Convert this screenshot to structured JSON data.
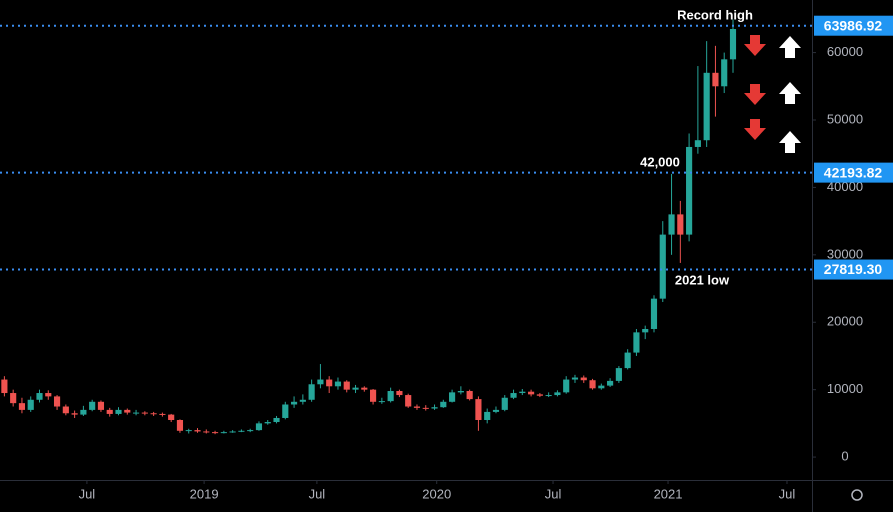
{
  "chart_data": {
    "type": "candlestick",
    "colors": {
      "up": "#26a69a",
      "down": "#ef5350",
      "level": "#3a8df0",
      "level_label": "#2196f3"
    },
    "x": [
      1,
      3,
      5,
      7,
      9,
      11,
      13,
      15,
      17,
      19,
      21,
      23,
      25,
      27,
      29,
      31,
      33,
      35,
      37,
      39,
      41,
      43,
      45,
      47,
      49,
      51,
      53,
      55,
      57,
      59,
      61,
      63,
      65,
      67,
      69,
      71,
      73,
      75,
      77,
      79,
      81,
      83,
      85,
      87,
      89,
      91,
      93,
      95,
      97,
      99,
      101,
      103,
      105,
      107,
      109,
      111,
      113,
      115,
      117,
      119,
      121,
      123,
      125,
      127,
      129,
      131,
      133,
      135,
      137,
      139,
      141,
      143,
      145,
      147,
      149,
      151,
      153,
      155,
      157,
      159,
      161,
      163,
      165,
      167
    ],
    "open": [
      11500,
      9500,
      8000,
      7000,
      8500,
      9500,
      9000,
      7500,
      6500,
      6300,
      7000,
      8200,
      7000,
      6400,
      7000,
      6600,
      6600,
      6500,
      6400,
      6300,
      5500,
      3900,
      4000,
      3800,
      3700,
      3600,
      3700,
      3800,
      3900,
      4000,
      5000,
      5200,
      5800,
      7800,
      8200,
      8500,
      10800,
      11500,
      10500,
      11200,
      10000,
      10300,
      10000,
      8200,
      8300,
      9800,
      9200,
      7500,
      7300,
      7200,
      7400,
      8200,
      9600,
      9800,
      8600,
      5500,
      6700,
      7000,
      8800,
      9500,
      9700,
      9300,
      9100,
      9200,
      9600,
      11500,
      11800,
      11400,
      10200,
      10600,
      11300,
      13200,
      15500,
      18500,
      19000,
      23500,
      33000,
      36000,
      33000,
      46000,
      47000,
      57000,
      55000,
      59000
    ],
    "high": [
      12000,
      10000,
      8800,
      9000,
      10000,
      9900,
      9200,
      7800,
      6900,
      7600,
      8500,
      8400,
      7300,
      7400,
      7200,
      7000,
      6800,
      6700,
      6600,
      6400,
      5600,
      4200,
      4300,
      4100,
      3900,
      3900,
      4000,
      4100,
      4200,
      5300,
      5500,
      6100,
      8200,
      9000,
      9300,
      11500,
      13800,
      12000,
      11800,
      11400,
      10700,
      10500,
      10100,
      8800,
      10300,
      10000,
      9400,
      7800,
      7700,
      7800,
      8500,
      10000,
      10500,
      10000,
      9000,
      7200,
      7500,
      9200,
      10000,
      10100,
      10000,
      9500,
      9600,
      9900,
      12000,
      12200,
      12100,
      11600,
      10900,
      11700,
      13500,
      16000,
      19000,
      19500,
      24000,
      35000,
      42000,
      38000,
      48000,
      58000,
      61700,
      61000,
      60000,
      64900
    ],
    "low": [
      9000,
      7500,
      6500,
      6700,
      8100,
      8500,
      7000,
      6200,
      5800,
      6100,
      6800,
      6700,
      6000,
      6200,
      6300,
      6200,
      6200,
      6100,
      6000,
      5200,
      3600,
      3500,
      3600,
      3500,
      3400,
      3500,
      3600,
      3700,
      3700,
      3900,
      4800,
      5000,
      5600,
      7300,
      7800,
      8200,
      10200,
      9500,
      10000,
      9600,
      9500,
      9700,
      7800,
      7900,
      8100,
      8900,
      7300,
      7000,
      6900,
      7000,
      7300,
      8100,
      9300,
      8400,
      3900,
      5000,
      6500,
      6800,
      8600,
      9200,
      9000,
      8900,
      8900,
      9000,
      9400,
      11000,
      11000,
      10000,
      10000,
      10400,
      11000,
      13000,
      15000,
      17500,
      18500,
      23000,
      30000,
      28800,
      32000,
      45000,
      46000,
      50500,
      54000,
      57000
    ],
    "close": [
      9500,
      8000,
      7000,
      8500,
      9500,
      9000,
      7500,
      6500,
      6300,
      7000,
      8200,
      7000,
      6400,
      7000,
      6600,
      6600,
      6500,
      6400,
      6300,
      5500,
      3900,
      4000,
      3800,
      3700,
      3600,
      3700,
      3800,
      3900,
      4000,
      5000,
      5200,
      5800,
      7800,
      8200,
      8500,
      10800,
      11500,
      10500,
      11200,
      10000,
      10300,
      10000,
      8200,
      8300,
      9800,
      9200,
      7500,
      7300,
      7200,
      7400,
      8200,
      9600,
      9800,
      8600,
      5500,
      6700,
      7000,
      8800,
      9500,
      9700,
      9300,
      9100,
      9200,
      9600,
      11500,
      11800,
      11400,
      10200,
      10600,
      11300,
      13200,
      15500,
      18500,
      19000,
      23500,
      33000,
      36000,
      33000,
      46000,
      47000,
      57000,
      55000,
      59000,
      63500
    ],
    "xlim": [
      0,
      185
    ],
    "xticks": [
      {
        "value": 19.8,
        "label": "Jul"
      },
      {
        "value": 46.5,
        "label": "2019"
      },
      {
        "value": 72.2,
        "label": "Jul"
      },
      {
        "value": 99.5,
        "label": "2020"
      },
      {
        "value": 126,
        "label": "Jul"
      },
      {
        "value": 152.2,
        "label": "2021"
      },
      {
        "value": 179.3,
        "label": "Jul"
      }
    ],
    "ylim": [
      -3400,
      67800
    ],
    "yticks": [
      0,
      10000,
      20000,
      30000,
      40000,
      50000,
      60000
    ],
    "levels": [
      {
        "value": 63986.92,
        "label": "63986.92"
      },
      {
        "value": 42193.82,
        "label": "42193.82"
      },
      {
        "value": 27819.3,
        "label": "27819.30"
      }
    ],
    "annotations": [
      "Record high",
      "42,000",
      "2021 low"
    ]
  }
}
